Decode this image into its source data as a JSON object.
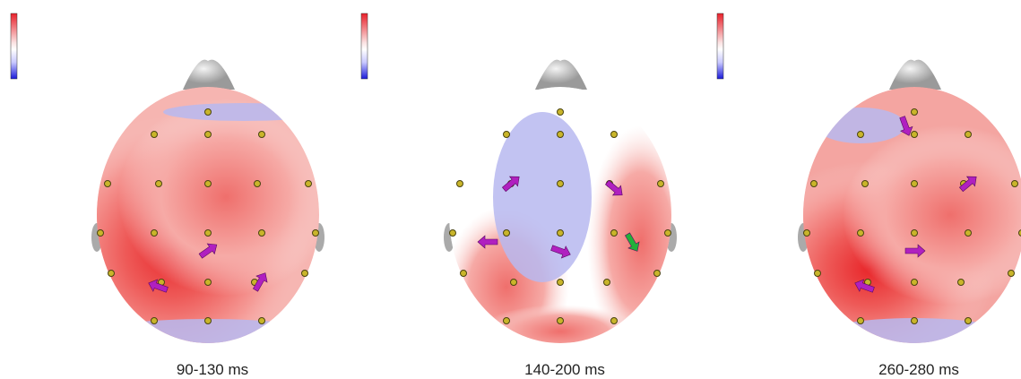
{
  "panels": [
    {
      "caption": "90-130 ms"
    },
    {
      "caption": "140-200 ms"
    },
    {
      "caption": "260-280 ms"
    }
  ]
}
